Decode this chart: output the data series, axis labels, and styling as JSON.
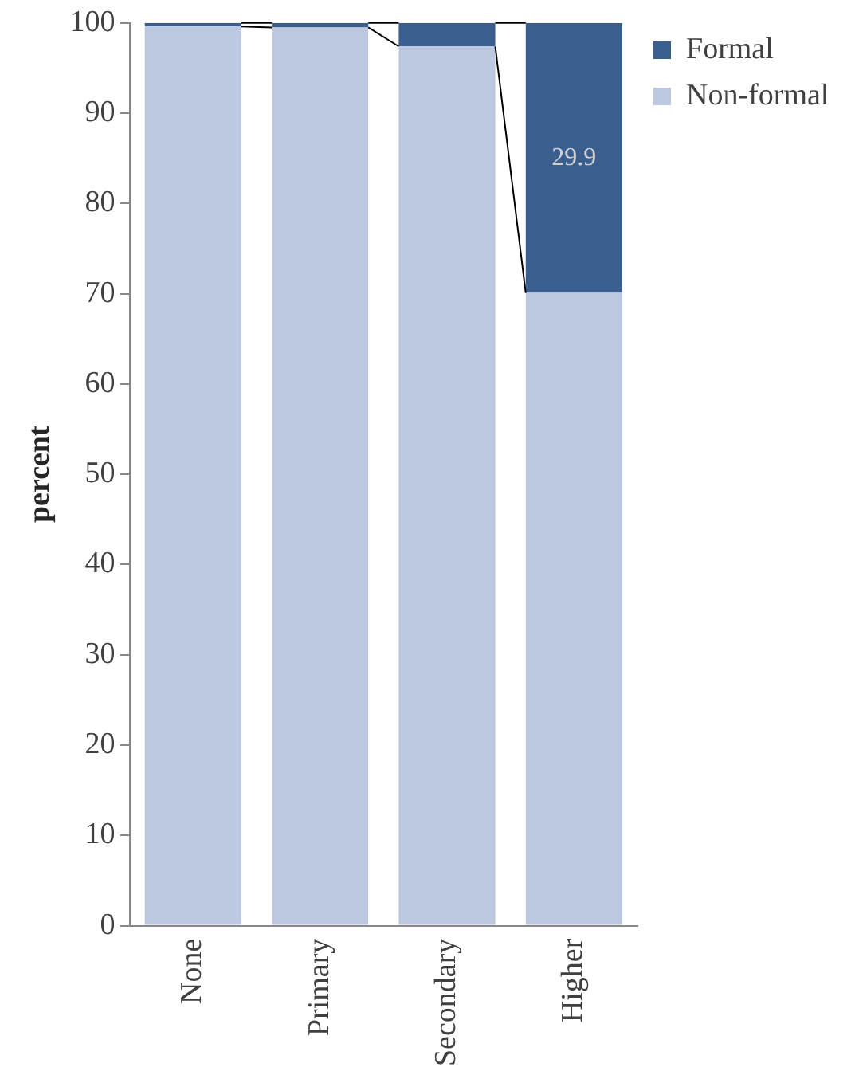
{
  "chart_data": {
    "type": "bar",
    "stacked": true,
    "ylabel": "percent",
    "categories": [
      "None",
      "Primary",
      "Secondary",
      "Higher"
    ],
    "series": [
      {
        "name": "Non-formal",
        "color": "#bcc8e0",
        "values": [
          99.6,
          99.5,
          97.4,
          70.1
        ]
      },
      {
        "name": "Formal",
        "color": "#3a5f8f",
        "values": [
          0.4,
          0.5,
          2.6,
          29.9
        ],
        "value_labels": [
          null,
          null,
          null,
          "29.9"
        ]
      }
    ],
    "ylim": [
      0,
      100
    ],
    "yticks": [
      0,
      10,
      20,
      30,
      40,
      50,
      60,
      70,
      80,
      90,
      100
    ],
    "grid": false,
    "legend": "right"
  }
}
